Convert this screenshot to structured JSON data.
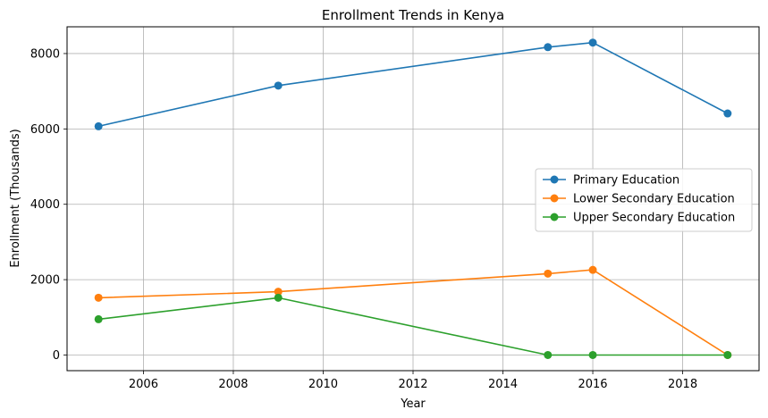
{
  "chart_data": {
    "type": "line",
    "title": "Enrollment Trends in Kenya",
    "xlabel": "Year",
    "ylabel": "Enrollment (Thousands)",
    "x": [
      2005,
      2009,
      2015,
      2016,
      2019
    ],
    "xlim": [
      2004.3,
      2019.7
    ],
    "ylim": [
      -415,
      8710
    ],
    "xticks": [
      2006,
      2008,
      2010,
      2012,
      2014,
      2016,
      2018
    ],
    "yticks": [
      0,
      2000,
      4000,
      6000,
      8000
    ],
    "grid": true,
    "legend_position": "center-right",
    "series": [
      {
        "name": "Primary Education",
        "color": "#1f77b4",
        "values": [
          6070,
          7150,
          8170,
          8290,
          6410
        ]
      },
      {
        "name": "Lower Secondary Education",
        "color": "#ff7f0e",
        "values": [
          1520,
          1680,
          2160,
          2260,
          0
        ]
      },
      {
        "name": "Upper Secondary Education",
        "color": "#2ca02c",
        "values": [
          950,
          1520,
          0,
          0,
          0
        ]
      }
    ]
  }
}
